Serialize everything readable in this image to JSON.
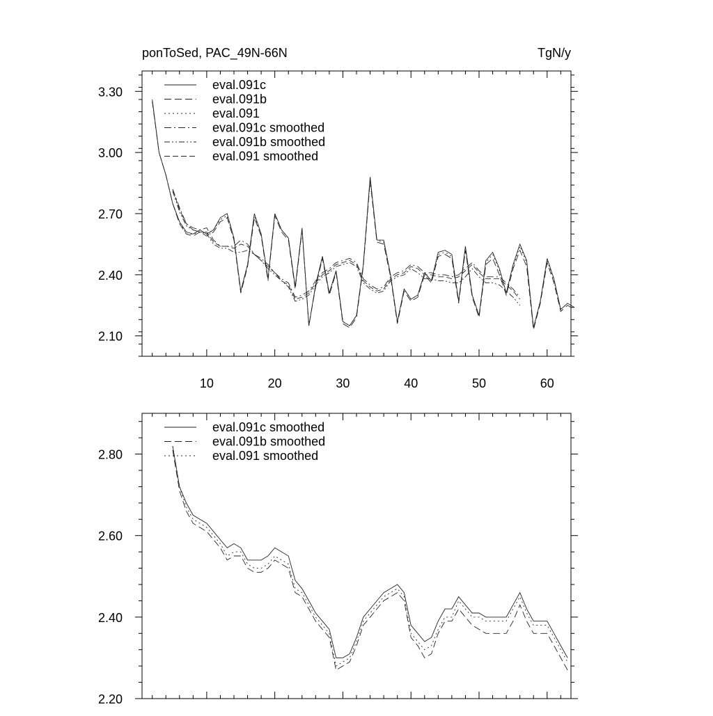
{
  "header": {
    "left_title": "ponToSed, PAC_49N-66N",
    "right_title": "TgN/y"
  },
  "chart_data": [
    {
      "type": "line",
      "xlim": [
        0.5,
        63.5
      ],
      "ylim": [
        2.0,
        3.4
      ],
      "x_ticks": [
        10,
        20,
        30,
        40,
        50,
        60
      ],
      "y_ticks": [
        2.1,
        2.4,
        2.7,
        3.0,
        3.3
      ],
      "y_tick_labels": [
        "2.10",
        "2.40",
        "2.70",
        "3.00",
        "3.30"
      ],
      "x_start": 2,
      "legend_position": "top-left",
      "series": [
        {
          "name": "eval.091c",
          "dash": "solid",
          "values": [
            3.26,
            3.0,
            2.89,
            2.75,
            2.66,
            2.61,
            2.6,
            2.62,
            2.6,
            2.62,
            2.68,
            2.7,
            2.58,
            2.32,
            2.45,
            2.7,
            2.6,
            2.38,
            2.7,
            2.62,
            2.58,
            2.34,
            2.63,
            2.15,
            2.35,
            2.49,
            2.31,
            2.42,
            2.17,
            2.15,
            2.2,
            2.45,
            2.88,
            2.57,
            2.57,
            2.4,
            2.17,
            2.33,
            2.28,
            2.3,
            2.41,
            2.37,
            2.51,
            2.52,
            2.5,
            2.27,
            2.54,
            2.3,
            2.2,
            2.47,
            2.51,
            2.43,
            2.31,
            2.45,
            2.55,
            2.47,
            2.14,
            2.27,
            2.48,
            2.38,
            2.23,
            2.26,
            2.24
          ]
        },
        {
          "name": "eval.091b",
          "dash": "10,5",
          "values": [
            3.25,
            3.0,
            2.89,
            2.75,
            2.65,
            2.6,
            2.59,
            2.61,
            2.59,
            2.61,
            2.66,
            2.68,
            2.57,
            2.31,
            2.44,
            2.68,
            2.59,
            2.37,
            2.69,
            2.61,
            2.57,
            2.33,
            2.62,
            2.15,
            2.34,
            2.48,
            2.3,
            2.41,
            2.16,
            2.14,
            2.19,
            2.44,
            2.86,
            2.56,
            2.55,
            2.39,
            2.16,
            2.32,
            2.27,
            2.29,
            2.4,
            2.36,
            2.49,
            2.5,
            2.48,
            2.26,
            2.52,
            2.29,
            2.19,
            2.45,
            2.48,
            2.4,
            2.3,
            2.43,
            2.52,
            2.44,
            2.13,
            2.26,
            2.46,
            2.36,
            2.22,
            2.25,
            2.23
          ]
        },
        {
          "name": "eval.091",
          "dash": "2,4",
          "values": [
            3.25,
            3.0,
            2.89,
            2.75,
            2.66,
            2.6,
            2.6,
            2.61,
            2.6,
            2.62,
            2.67,
            2.69,
            2.58,
            2.32,
            2.45,
            2.69,
            2.6,
            2.38,
            2.7,
            2.62,
            2.58,
            2.34,
            2.62,
            2.15,
            2.35,
            2.49,
            2.31,
            2.42,
            2.17,
            2.15,
            2.2,
            2.45,
            2.87,
            2.57,
            2.56,
            2.4,
            2.17,
            2.33,
            2.28,
            2.3,
            2.41,
            2.37,
            2.5,
            2.51,
            2.49,
            2.27,
            2.53,
            2.3,
            2.2,
            2.46,
            2.5,
            2.42,
            2.31,
            2.44,
            2.54,
            2.46,
            2.14,
            2.27,
            2.47,
            2.37,
            2.23,
            2.26,
            2.24
          ]
        },
        {
          "name": "eval.091c smoothed",
          "dash": "10,4,2,4",
          "values": [
            null,
            null,
            null,
            2.82,
            2.73,
            2.65,
            2.63,
            2.62,
            2.63,
            2.57,
            2.54,
            2.54,
            2.54,
            2.57,
            2.55,
            2.5,
            2.48,
            2.45,
            2.41,
            2.38,
            2.36,
            2.29,
            2.3,
            2.32,
            2.37,
            2.41,
            2.43,
            2.46,
            2.47,
            2.48,
            2.46,
            2.38,
            2.35,
            2.33,
            2.34,
            2.39,
            2.41,
            2.42,
            2.45,
            2.44,
            2.41,
            2.41,
            2.4,
            2.4,
            2.39,
            2.4,
            2.43,
            2.46,
            2.42,
            2.39,
            2.39,
            2.39,
            2.36,
            2.33,
            2.29
          ]
        },
        {
          "name": "eval.091b smoothed",
          "dash": "8,3,2,3,2,3",
          "values": [
            null,
            null,
            null,
            2.81,
            2.71,
            2.64,
            2.62,
            2.61,
            2.6,
            2.55,
            2.53,
            2.53,
            2.51,
            2.51,
            2.52,
            2.5,
            2.47,
            2.43,
            2.4,
            2.37,
            2.34,
            2.27,
            2.28,
            2.3,
            2.35,
            2.39,
            2.41,
            2.44,
            2.45,
            2.46,
            2.44,
            2.36,
            2.33,
            2.31,
            2.32,
            2.37,
            2.39,
            2.4,
            2.43,
            2.41,
            2.38,
            2.38,
            2.37,
            2.37,
            2.36,
            2.36,
            2.39,
            2.43,
            2.39,
            2.36,
            2.36,
            2.35,
            2.32,
            2.29,
            2.25
          ]
        },
        {
          "name": "eval.091 smoothed",
          "dash": "8,4",
          "values": [
            null,
            null,
            null,
            2.82,
            2.72,
            2.65,
            2.62,
            2.61,
            2.61,
            2.56,
            2.54,
            2.54,
            2.53,
            2.55,
            2.54,
            2.5,
            2.47,
            2.44,
            2.41,
            2.37,
            2.35,
            2.28,
            2.29,
            2.31,
            2.36,
            2.4,
            2.42,
            2.45,
            2.46,
            2.47,
            2.45,
            2.37,
            2.34,
            2.32,
            2.33,
            2.38,
            2.4,
            2.41,
            2.44,
            2.43,
            2.4,
            2.4,
            2.39,
            2.39,
            2.38,
            2.39,
            2.42,
            2.45,
            2.41,
            2.38,
            2.38,
            2.38,
            2.35,
            2.32,
            2.28
          ]
        }
      ]
    },
    {
      "type": "line",
      "xlim": [
        0.5,
        63.5
      ],
      "ylim": [
        2.2,
        2.9
      ],
      "x_ticks": [
        10,
        20,
        30,
        40,
        50,
        60
      ],
      "y_ticks": [
        2.2,
        2.4,
        2.6,
        2.8
      ],
      "y_tick_labels": [
        "2.20",
        "2.40",
        "2.60",
        "2.80"
      ],
      "x_start": 5,
      "legend_position": "top-left",
      "series": [
        {
          "name": "eval.091c smoothed",
          "dash": "solid",
          "values": [
            2.82,
            2.72,
            2.68,
            2.65,
            2.64,
            2.63,
            2.61,
            2.59,
            2.57,
            2.58,
            2.57,
            2.54,
            2.54,
            2.54,
            2.55,
            2.57,
            2.56,
            2.55,
            2.49,
            2.47,
            2.44,
            2.41,
            2.39,
            2.37,
            2.3,
            2.3,
            2.31,
            2.35,
            2.4,
            2.42,
            2.44,
            2.46,
            2.47,
            2.48,
            2.46,
            2.38,
            2.36,
            2.34,
            2.35,
            2.39,
            2.42,
            2.42,
            2.45,
            2.43,
            2.41,
            2.41,
            2.4,
            2.4,
            2.4,
            2.4,
            2.43,
            2.46,
            2.42,
            2.39,
            2.39,
            2.39,
            2.36,
            2.33,
            2.3
          ]
        },
        {
          "name": "eval.091b smoothed",
          "dash": "10,5",
          "values": [
            2.81,
            2.71,
            2.66,
            2.63,
            2.62,
            2.61,
            2.59,
            2.57,
            2.54,
            2.55,
            2.55,
            2.52,
            2.51,
            2.51,
            2.52,
            2.54,
            2.53,
            2.52,
            2.46,
            2.45,
            2.42,
            2.39,
            2.37,
            2.35,
            2.27,
            2.28,
            2.29,
            2.33,
            2.38,
            2.4,
            2.42,
            2.44,
            2.45,
            2.46,
            2.44,
            2.35,
            2.33,
            2.3,
            2.31,
            2.36,
            2.39,
            2.39,
            2.42,
            2.4,
            2.38,
            2.37,
            2.36,
            2.36,
            2.36,
            2.36,
            2.39,
            2.43,
            2.39,
            2.36,
            2.36,
            2.36,
            2.33,
            2.3,
            2.27
          ]
        },
        {
          "name": "eval.091 smoothed",
          "dash": "2,4",
          "values": [
            2.82,
            2.72,
            2.67,
            2.64,
            2.63,
            2.62,
            2.6,
            2.58,
            2.55,
            2.56,
            2.56,
            2.53,
            2.52,
            2.52,
            2.53,
            2.55,
            2.54,
            2.53,
            2.47,
            2.46,
            2.43,
            2.4,
            2.38,
            2.36,
            2.28,
            2.29,
            2.3,
            2.34,
            2.39,
            2.41,
            2.43,
            2.45,
            2.46,
            2.47,
            2.45,
            2.36,
            2.34,
            2.32,
            2.33,
            2.37,
            2.4,
            2.4,
            2.44,
            2.42,
            2.4,
            2.4,
            2.39,
            2.39,
            2.39,
            2.39,
            2.42,
            2.45,
            2.41,
            2.38,
            2.38,
            2.38,
            2.35,
            2.32,
            2.29
          ]
        }
      ]
    }
  ]
}
